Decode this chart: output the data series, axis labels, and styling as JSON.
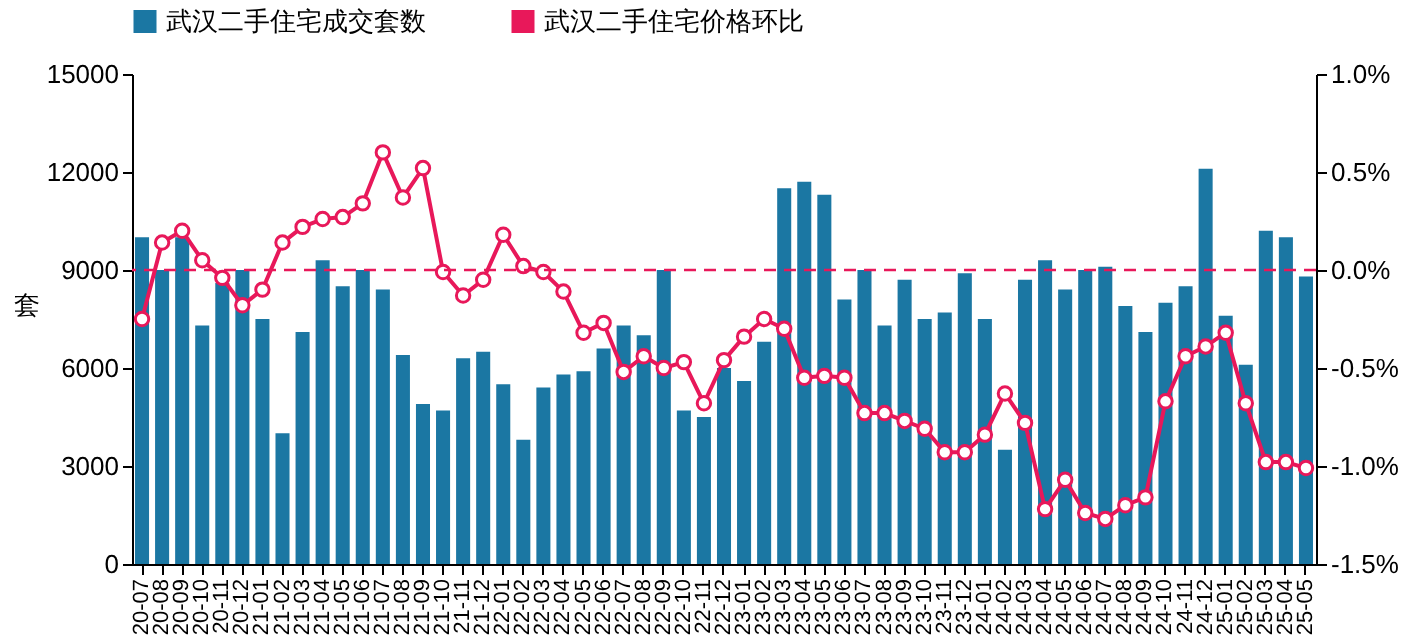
{
  "chart_data": {
    "type": "bar",
    "ylabel": "套",
    "categories": [
      "20-07",
      "20-08",
      "20-09",
      "20-10",
      "20-11",
      "20-12",
      "21-01",
      "21-02",
      "21-03",
      "21-04",
      "21-05",
      "21-06",
      "21-07",
      "21-08",
      "21-09",
      "21-10",
      "21-11",
      "21-12",
      "22-01",
      "22-02",
      "22-03",
      "22-04",
      "22-05",
      "22-06",
      "22-07",
      "22-08",
      "22-09",
      "22-10",
      "22-11",
      "22-12",
      "23-01",
      "23-02",
      "23-03",
      "23-04",
      "23-05",
      "23-06",
      "23-07",
      "23-08",
      "23-09",
      "23-10",
      "23-11",
      "23-12",
      "24-01",
      "24-02",
      "24-03",
      "24-04",
      "24-05",
      "24-06",
      "24-07",
      "24-08",
      "24-09",
      "24-10",
      "24-11",
      "24-12",
      "25-01",
      "25-02",
      "25-03",
      "25-04",
      "25-05"
    ],
    "series": [
      {
        "name": "武汉二手住宅成交套数",
        "color": "#1b77a3",
        "values": [
          10000,
          9000,
          10000,
          7300,
          8600,
          9000,
          7500,
          4000,
          7100,
          9300,
          8500,
          9000,
          8400,
          6400,
          4900,
          4700,
          6300,
          6500,
          5500,
          3800,
          5400,
          5800,
          5900,
          6600,
          7300,
          7000,
          9000,
          4700,
          4500,
          6000,
          5600,
          6800,
          11500,
          11700,
          11300,
          8100,
          9000,
          7300,
          8700,
          7500,
          7700,
          8900,
          7500,
          3500,
          8700,
          9300,
          8400,
          9000,
          9100,
          7900,
          7100,
          8000,
          8500,
          12100,
          7600,
          6100,
          10200,
          10000,
          8800
        ]
      },
      {
        "name": "武汉二手住宅价格环比",
        "type": "line",
        "axis": "y2",
        "color": "#e8185a",
        "values": [
          -0.25,
          0.14,
          0.2,
          0.05,
          -0.04,
          -0.18,
          -0.1,
          0.14,
          0.22,
          0.26,
          0.27,
          0.34,
          0.6,
          0.37,
          0.52,
          -0.01,
          -0.13,
          -0.05,
          0.18,
          0.02,
          -0.01,
          -0.11,
          -0.32,
          -0.27,
          -0.52,
          -0.44,
          -0.5,
          -0.47,
          -0.68,
          -0.46,
          -0.34,
          -0.25,
          -0.3,
          -0.55,
          -0.54,
          -0.55,
          -0.73,
          -0.73,
          -0.77,
          -0.81,
          -0.93,
          -0.93,
          -0.84,
          -0.63,
          -0.78,
          -1.22,
          -1.07,
          -1.24,
          -1.27,
          -1.2,
          -1.16,
          -0.67,
          -0.44,
          -0.39,
          -0.32,
          -0.68,
          -0.98,
          -0.98,
          -1.01
        ]
      }
    ],
    "ylim": [
      0,
      15000
    ],
    "yticks": [
      0,
      3000,
      6000,
      9000,
      12000,
      15000
    ],
    "y2lim": [
      -1.5,
      1.0
    ],
    "y2ticks": [
      {
        "value": -1.5,
        "label": "-1.5%"
      },
      {
        "value": -1.0,
        "label": "-1.0%"
      },
      {
        "value": -0.5,
        "label": "-0.5%"
      },
      {
        "value": 0,
        "label": "0.0%"
      },
      {
        "value": 0.5,
        "label": "0.5%"
      },
      {
        "value": 1.0,
        "label": "1.0%"
      }
    ],
    "ref_lines": [
      {
        "axis": "y2",
        "value": 0,
        "color": "#e8185a",
        "line_style": "dashed"
      }
    ],
    "marker": "circle",
    "legend": "top",
    "grid": false
  }
}
